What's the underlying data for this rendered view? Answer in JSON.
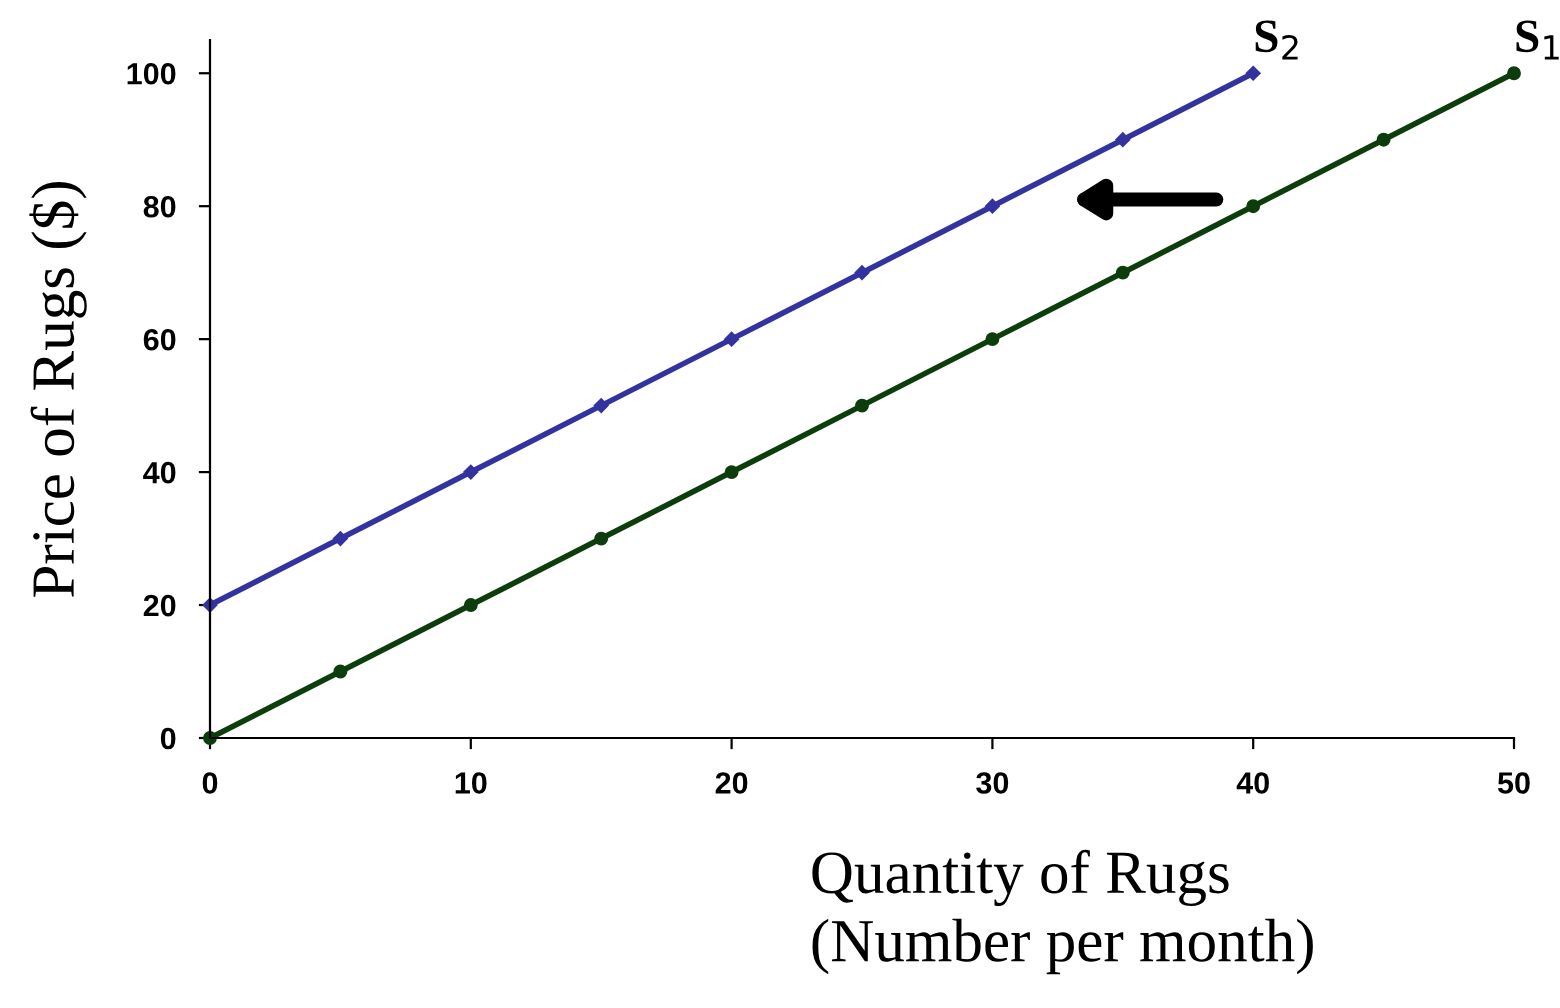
{
  "chart_data": {
    "type": "line",
    "xlabel": "Quantity of Rugs\n(Number per month)",
    "ylabel": "Price of Rugs ($)",
    "xlim": [
      0,
      50
    ],
    "xticks": [
      0,
      10,
      20,
      30,
      40,
      50
    ],
    "ylim": [
      0,
      105
    ],
    "yticks": [
      0,
      20,
      40,
      60,
      80,
      100
    ],
    "grid": false,
    "legend": false,
    "series": [
      {
        "name": "S$_{2}$",
        "color": "#3333a0",
        "marker": "diamond",
        "x": [
          0,
          5,
          10,
          15,
          20,
          25,
          30,
          35,
          40
        ],
        "values": [
          20,
          30,
          40,
          50,
          60,
          70,
          80,
          90,
          100
        ]
      },
      {
        "name": "S$_{1}$",
        "color": "#0d3d0d",
        "marker": "circle",
        "x": [
          0,
          5,
          10,
          15,
          20,
          25,
          30,
          35,
          40,
          45,
          50
        ],
        "values": [
          0,
          10,
          20,
          30,
          40,
          50,
          60,
          70,
          80,
          90,
          100
        ]
      }
    ]
  }
}
